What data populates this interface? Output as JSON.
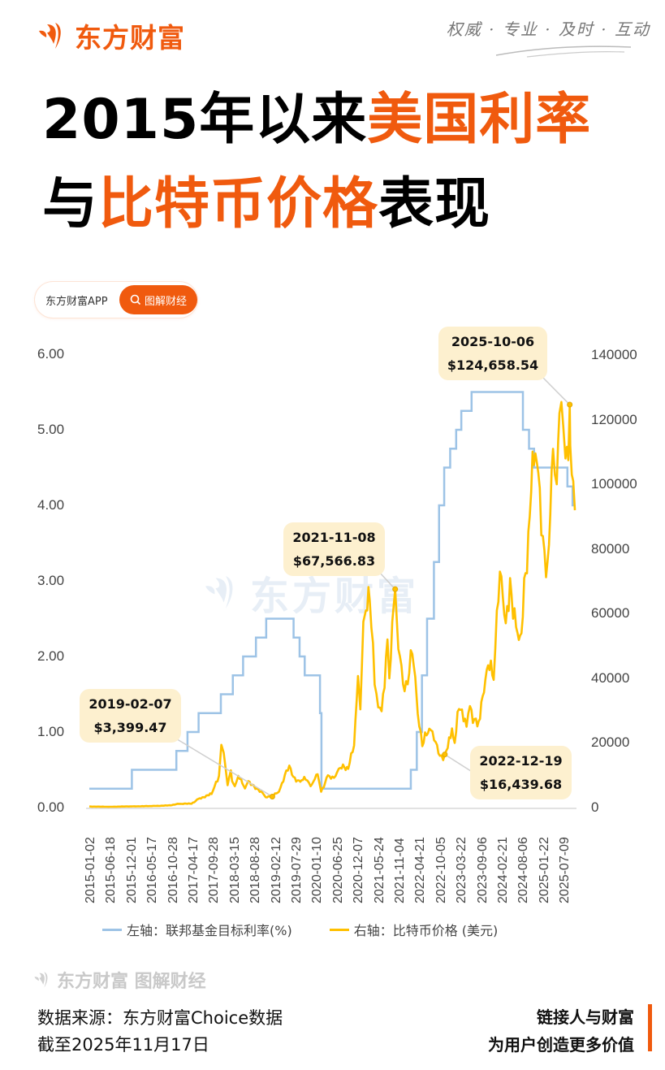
{
  "header": {
    "brand": "东方财富",
    "slogan": "权威 · 专业 · 及时 · 互动"
  },
  "title": {
    "line1_plain": "2015年以来",
    "line1_highlight": "美国利率",
    "line2_plain_a": "与",
    "line2_highlight": "比特币价格",
    "line2_plain_b": "表现"
  },
  "pill": {
    "left_label": "东方财富APP",
    "button_label": "图解财经",
    "button_icon": "search-icon"
  },
  "watermark": "东方财富",
  "colors": {
    "brand": "#f05a0e",
    "rate_line": "#9dc3e6",
    "btc_line": "#ffc000",
    "callout_bg": "#fdf0cf"
  },
  "chart_data": {
    "type": "line",
    "title": "2015年以来美国利率与比特币价格表现",
    "xlabel": "",
    "ylabel_left": "联邦基金目标利率(%)",
    "ylabel_right": "比特币价格(美元)",
    "ylim_left": [
      0,
      6
    ],
    "ylim_right": [
      0,
      140000
    ],
    "left_ticks": [
      "6.00",
      "5.00",
      "4.00",
      "3.00",
      "2.00",
      "1.00",
      "0.00"
    ],
    "right_ticks": [
      "140000",
      "120000",
      "100000",
      "80000",
      "60000",
      "40000",
      "20000",
      "0"
    ],
    "x_tick_labels": [
      "2015-01-02",
      "2015-06-18",
      "2015-12-01",
      "2016-05-17",
      "2016-10-28",
      "2017-04-17",
      "2017-09-28",
      "2018-03-15",
      "2018-08-28",
      "2019-02-12",
      "2019-07-29",
      "2020-01-10",
      "2020-06-25",
      "2020-12-07",
      "2021-05-24",
      "2021-11-04",
      "2022-04-21",
      "2022-10-05",
      "2023-03-22",
      "2023-09-06",
      "2024-02-21",
      "2024-08-06",
      "2025-01-22",
      "2025-07-09"
    ],
    "grid": false,
    "legend_position": "bottom",
    "series": [
      {
        "name": "左轴：联邦基金目标利率(%)",
        "axis": "left",
        "step": true,
        "points": [
          [
            "2015-01-02",
            0.25
          ],
          [
            "2015-12-16",
            0.5
          ],
          [
            "2016-12-14",
            0.75
          ],
          [
            "2017-03-15",
            1.0
          ],
          [
            "2017-06-14",
            1.25
          ],
          [
            "2017-12-13",
            1.5
          ],
          [
            "2018-03-21",
            1.75
          ],
          [
            "2018-06-13",
            2.0
          ],
          [
            "2018-09-26",
            2.25
          ],
          [
            "2018-12-19",
            2.5
          ],
          [
            "2019-07-31",
            2.25
          ],
          [
            "2019-09-18",
            2.0
          ],
          [
            "2019-10-30",
            1.75
          ],
          [
            "2020-03-03",
            1.25
          ],
          [
            "2020-03-15",
            0.25
          ],
          [
            "2022-03-16",
            0.5
          ],
          [
            "2022-05-04",
            1.0
          ],
          [
            "2022-06-15",
            1.75
          ],
          [
            "2022-07-27",
            2.5
          ],
          [
            "2022-09-21",
            3.25
          ],
          [
            "2022-11-02",
            4.0
          ],
          [
            "2022-12-14",
            4.5
          ],
          [
            "2023-02-01",
            4.75
          ],
          [
            "2023-03-22",
            5.0
          ],
          [
            "2023-05-03",
            5.25
          ],
          [
            "2023-07-26",
            5.5
          ],
          [
            "2024-09-18",
            5.0
          ],
          [
            "2024-11-07",
            4.75
          ],
          [
            "2024-12-18",
            4.5
          ],
          [
            "2025-09-17",
            4.25
          ],
          [
            "2025-10-29",
            4.0
          ],
          [
            "2025-11-17",
            4.0
          ]
        ]
      },
      {
        "name": "右轴：比特币价格 (美元)",
        "axis": "right",
        "points": [
          [
            "2015-01-02",
            315
          ],
          [
            "2015-06-18",
            250
          ],
          [
            "2015-12-01",
            360
          ],
          [
            "2016-05-17",
            455
          ],
          [
            "2016-10-28",
            690
          ],
          [
            "2017-01-04",
            1150
          ],
          [
            "2017-04-17",
            1190
          ],
          [
            "2017-06-12",
            2700
          ],
          [
            "2017-09-28",
            4200
          ],
          [
            "2017-11-28",
            9800
          ],
          [
            "2017-12-17",
            19400
          ],
          [
            "2018-01-05",
            17000
          ],
          [
            "2018-02-06",
            6900
          ],
          [
            "2018-03-05",
            11500
          ],
          [
            "2018-03-15",
            8200
          ],
          [
            "2018-04-06",
            6600
          ],
          [
            "2018-05-05",
            9800
          ],
          [
            "2018-06-28",
            5900
          ],
          [
            "2018-07-25",
            8200
          ],
          [
            "2018-08-28",
            7100
          ],
          [
            "2018-11-20",
            4500
          ],
          [
            "2018-12-15",
            3200
          ],
          [
            "2019-02-07",
            3399.47
          ],
          [
            "2019-04-02",
            4900
          ],
          [
            "2019-06-26",
            13000
          ],
          [
            "2019-07-29",
            9500
          ],
          [
            "2019-09-24",
            8000
          ],
          [
            "2019-10-26",
            9500
          ],
          [
            "2019-12-17",
            6600
          ],
          [
            "2020-01-10",
            8100
          ],
          [
            "2020-02-13",
            10300
          ],
          [
            "2020-03-12",
            4900
          ],
          [
            "2020-05-07",
            10000
          ],
          [
            "2020-06-25",
            9200
          ],
          [
            "2020-08-17",
            12300
          ],
          [
            "2020-10-20",
            12000
          ],
          [
            "2020-12-07",
            19200
          ],
          [
            "2021-01-08",
            40700
          ],
          [
            "2021-01-27",
            30400
          ],
          [
            "2021-02-21",
            57500
          ],
          [
            "2021-03-13",
            61000
          ],
          [
            "2021-04-14",
            64000
          ],
          [
            "2021-05-24",
            38000
          ],
          [
            "2021-06-22",
            31000
          ],
          [
            "2021-07-20",
            29800
          ],
          [
            "2021-09-06",
            52000
          ],
          [
            "2021-09-21",
            40000
          ],
          [
            "2021-11-08",
            67566.83
          ],
          [
            "2021-12-04",
            49000
          ],
          [
            "2022-01-24",
            36000
          ],
          [
            "2022-03-28",
            47500
          ],
          [
            "2022-04-21",
            40500
          ],
          [
            "2022-05-12",
            29000
          ],
          [
            "2022-06-18",
            19000
          ],
          [
            "2022-08-14",
            24400
          ],
          [
            "2022-10-05",
            20300
          ],
          [
            "2022-11-09",
            16000
          ],
          [
            "2022-12-19",
            16439.68
          ],
          [
            "2023-02-16",
            24500
          ],
          [
            "2023-03-10",
            20000
          ],
          [
            "2023-04-14",
            30500
          ],
          [
            "2023-06-15",
            25000
          ],
          [
            "2023-07-13",
            31400
          ],
          [
            "2023-09-11",
            25100
          ],
          [
            "2023-10-25",
            34500
          ],
          [
            "2023-12-08",
            44000
          ],
          [
            "2024-01-23",
            39500
          ],
          [
            "2024-03-14",
            73000
          ],
          [
            "2024-05-01",
            57000
          ],
          [
            "2024-06-05",
            71000
          ],
          [
            "2024-08-05",
            54000
          ],
          [
            "2024-09-06",
            53900
          ],
          [
            "2024-11-13",
            90000
          ],
          [
            "2024-12-17",
            106000
          ],
          [
            "2025-01-22",
            103500
          ],
          [
            "2025-02-28",
            84000
          ],
          [
            "2025-04-08",
            76300
          ],
          [
            "2025-05-22",
            111000
          ],
          [
            "2025-06-22",
            100000
          ],
          [
            "2025-07-14",
            122000
          ],
          [
            "2025-08-14",
            118000
          ],
          [
            "2025-09-01",
            108000
          ],
          [
            "2025-10-06",
            124658.54
          ],
          [
            "2025-10-10",
            112000
          ],
          [
            "2025-11-04",
            101000
          ],
          [
            "2025-11-17",
            92000
          ]
        ]
      }
    ],
    "annotations": [
      {
        "date": "2019-02-07",
        "label_date": "2019-02-07",
        "label_value": "$3,399.47"
      },
      {
        "date": "2021-11-08",
        "label_date": "2021-11-08",
        "label_value": "$67,566.83"
      },
      {
        "date": "2022-12-19",
        "label_date": "2022-12-19",
        "label_value": "$16,439.68"
      },
      {
        "date": "2025-10-06",
        "label_date": "2025-10-06",
        "label_value": "$124,658.54"
      }
    ]
  },
  "legend": {
    "rate": "左轴：联邦基金目标利率(%)",
    "btc": "右轴：比特币价格 (美元)"
  },
  "footer": {
    "watermark": "东方财富 图解财经",
    "source": "数据来源：东方财富Choice数据",
    "as_of": "截至2025年11月17日",
    "tagline1": "链接人与财富",
    "tagline2": "为用户创造更多价值"
  }
}
